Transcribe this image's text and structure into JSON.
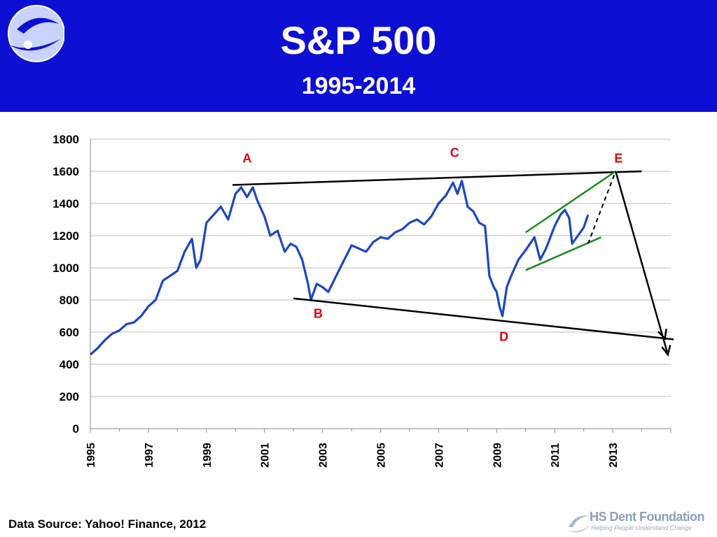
{
  "header": {
    "title": "S&P 500",
    "subtitle": "1995-2014",
    "logo_icon": "swirl-globe-icon"
  },
  "footer": {
    "source": "Data Source: Yahoo! Finance, 2012",
    "brand_name": "HS Dent Foundation",
    "brand_tagline": "Helping People Understand Change",
    "brand_icon": "swirl-logo-icon"
  },
  "chart_data": {
    "type": "line",
    "title": "S&P 500",
    "subtitle": "1995-2014",
    "xlabel": "",
    "ylabel": "",
    "xlim": [
      1995,
      2015
    ],
    "ylim": [
      0,
      1800
    ],
    "y_ticks": [
      0,
      200,
      400,
      600,
      800,
      1000,
      1200,
      1400,
      1600,
      1800
    ],
    "x_ticks": [
      "1995",
      "1997",
      "1999",
      "2001",
      "2003",
      "2005",
      "2007",
      "2009",
      "2011",
      "2013"
    ],
    "grid": "horizontal",
    "colors": {
      "series": "#1d46c0",
      "trendline": "#000000",
      "channel": "#1a8a1a",
      "annotation": "#e3000f"
    },
    "series": [
      {
        "x": [
          1995.0,
          1995.25,
          1995.5,
          1995.75,
          1996.0,
          1996.25,
          1996.5,
          1996.75,
          1997.0,
          1997.25,
          1997.5,
          1997.75,
          1998.0,
          1998.25,
          1998.5,
          1998.65,
          1998.8,
          1999.0,
          1999.25,
          1999.5,
          1999.75,
          2000.0,
          2000.2,
          2000.4,
          2000.6,
          2000.75,
          2001.0,
          2001.2,
          2001.45,
          2001.7,
          2001.9,
          2002.1,
          2002.3,
          2002.5,
          2002.6,
          2002.8,
          2003.0,
          2003.2,
          2003.5,
          2003.75,
          2004.0,
          2004.25,
          2004.5,
          2004.75,
          2005.0,
          2005.25,
          2005.5,
          2005.75,
          2006.0,
          2006.25,
          2006.5,
          2006.75,
          2007.0,
          2007.25,
          2007.5,
          2007.65,
          2007.8,
          2008.0,
          2008.2,
          2008.4,
          2008.6,
          2008.75,
          2008.9,
          2009.0,
          2009.1,
          2009.2,
          2009.35,
          2009.5,
          2009.75,
          2010.0,
          2010.3,
          2010.5,
          2010.7,
          2011.0,
          2011.2,
          2011.35,
          2011.5,
          2011.6,
          2011.8,
          2012.0,
          2012.15
        ],
        "values": [
          460,
          500,
          550,
          590,
          610,
          650,
          660,
          700,
          760,
          800,
          920,
          950,
          980,
          1100,
          1180,
          1000,
          1050,
          1280,
          1330,
          1380,
          1300,
          1460,
          1500,
          1440,
          1500,
          1420,
          1320,
          1200,
          1230,
          1100,
          1150,
          1130,
          1050,
          900,
          800,
          900,
          880,
          850,
          960,
          1050,
          1140,
          1120,
          1100,
          1160,
          1190,
          1180,
          1220,
          1240,
          1280,
          1300,
          1270,
          1320,
          1400,
          1450,
          1530,
          1460,
          1540,
          1380,
          1350,
          1280,
          1260,
          950,
          880,
          850,
          760,
          700,
          880,
          950,
          1050,
          1110,
          1190,
          1050,
          1120,
          1260,
          1330,
          1360,
          1310,
          1150,
          1200,
          1250,
          1330
        ]
      }
    ],
    "trendlines": [
      {
        "from": [
          1995.0,
          0
        ],
        "to": [
          1995.0,
          0
        ],
        "skip": true
      }
    ],
    "annotations": [
      {
        "label": "A",
        "x": 2000.4,
        "y": 1655
      },
      {
        "label": "B",
        "x": 2002.85,
        "y": 690
      },
      {
        "label": "C",
        "x": 2007.55,
        "y": 1690
      },
      {
        "label": "D",
        "x": 2009.25,
        "y": 545
      },
      {
        "label": "E",
        "x": 2013.2,
        "y": 1655
      }
    ]
  }
}
